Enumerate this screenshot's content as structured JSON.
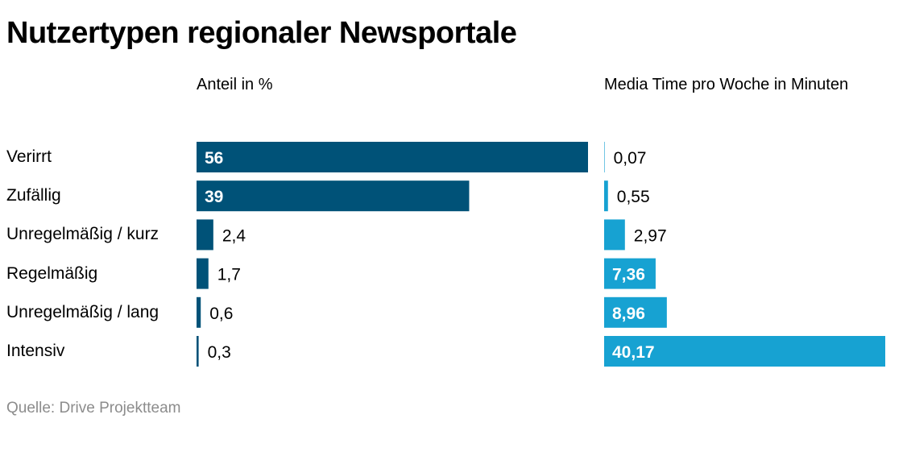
{
  "title": "Nutzertypen regionaler Newsportale",
  "source": "Quelle: Drive Projektteam",
  "colors": {
    "left_bar": "#005278",
    "right_bar": "#17a2d2",
    "label_inside": "#ffffff",
    "label_outside": "#000000"
  },
  "chart_data": [
    {
      "type": "bar",
      "orientation": "horizontal",
      "title": "Anteil in %",
      "categories": [
        "Verirrt",
        "Zufällig",
        "Unregelmäßig / kurz",
        "Regelmäßig",
        "Unregelmäßig / lang",
        "Intensiv"
      ],
      "values": [
        56,
        39,
        2.4,
        1.7,
        0.6,
        0.3
      ],
      "value_labels": [
        "56",
        "39",
        "2,4",
        "1,7",
        "0,6",
        "0,3"
      ],
      "xlim": [
        0,
        56
      ]
    },
    {
      "type": "bar",
      "orientation": "horizontal",
      "title": "Media Time pro Woche in Minuten",
      "categories": [
        "Verirrt",
        "Zufällig",
        "Unregelmäßig / kurz",
        "Regelmäßig",
        "Unregelmäßig / lang",
        "Intensiv"
      ],
      "values": [
        0.07,
        0.55,
        2.97,
        7.36,
        8.96,
        40.17
      ],
      "value_labels": [
        "0,07",
        "0,55",
        "2,97",
        "7,36",
        "8,96",
        "40,17"
      ],
      "xlim": [
        0,
        40.17
      ]
    }
  ]
}
